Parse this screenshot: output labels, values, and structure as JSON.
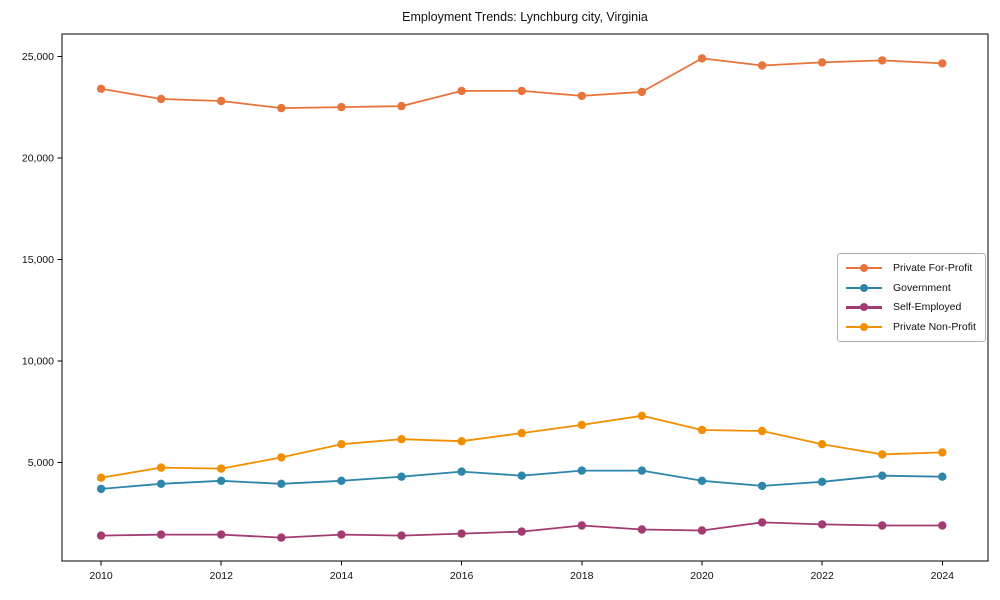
{
  "chart_data": {
    "type": "line",
    "title": "Employment Trends: Lynchburg city, Virginia",
    "x": [
      2010,
      2011,
      2012,
      2013,
      2014,
      2015,
      2016,
      2017,
      2018,
      2019,
      2020,
      2021,
      2022,
      2023,
      2024
    ],
    "series": [
      {
        "name": "Private For-Profit",
        "color": "#E8743B",
        "values": [
          23400,
          22900,
          22800,
          22450,
          22500,
          22550,
          23300,
          23300,
          23050,
          23250,
          24900,
          24550,
          24700,
          24800,
          24650
        ]
      },
      {
        "name": "Government",
        "color": "#2E86AB",
        "values": [
          3700,
          3950,
          4100,
          3950,
          4100,
          4300,
          4550,
          4350,
          4600,
          4600,
          4100,
          3850,
          4050,
          4350,
          4300
        ]
      },
      {
        "name": "Self-Employed",
        "color": "#A23B72",
        "values": [
          1400,
          1450,
          1450,
          1300,
          1450,
          1400,
          1500,
          1600,
          1900,
          1700,
          1650,
          2050,
          1950,
          1900,
          1900
        ]
      },
      {
        "name": "Private Non-Profit",
        "color": "#F18F01",
        "values": [
          4250,
          4750,
          4700,
          5250,
          5900,
          6150,
          6050,
          6450,
          6850,
          7300,
          6600,
          6550,
          5900,
          5400,
          5500
        ]
      }
    ],
    "xlabel": "",
    "ylabel": "",
    "xlim": [
      2009.35,
      2024.76
    ],
    "ylim": [
      150,
      26100
    ],
    "x_ticks": [
      2010,
      2012,
      2014,
      2016,
      2018,
      2020,
      2022,
      2024
    ],
    "x_tick_labels": [
      "2010",
      "2012",
      "2014",
      "2016",
      "2018",
      "2020",
      "2022",
      "2024"
    ],
    "y_ticks": [
      5000,
      10000,
      15000,
      20000,
      25000
    ],
    "y_tick_labels": [
      "5,000",
      "10,000",
      "15,000",
      "20,000",
      "25,000"
    ],
    "grid": false,
    "legend_position": "center-right-inside",
    "axes_color": "#000000",
    "tick_label_color": "#111111",
    "background_color": "#ffffff"
  }
}
